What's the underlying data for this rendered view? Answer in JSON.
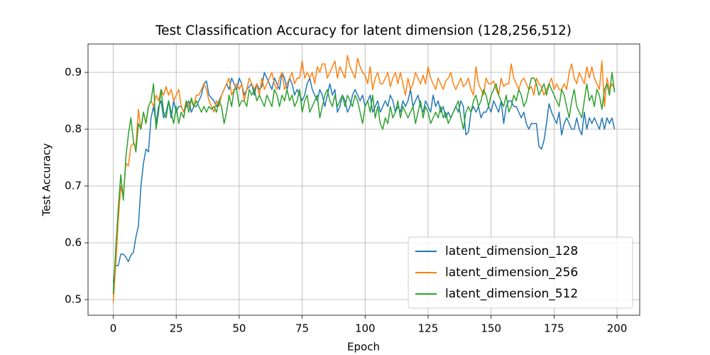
{
  "chart_data": {
    "type": "line",
    "title": "Test Classification Accuracy for latent dimension (128,256,512)",
    "xlabel": "Epoch",
    "ylabel": "Test Accuracy",
    "x": [
      0,
      1,
      2,
      3,
      4,
      5,
      6,
      7,
      8,
      9,
      10,
      11,
      12,
      13,
      14,
      15,
      16,
      17,
      18,
      19,
      20,
      21,
      22,
      23,
      24,
      25,
      26,
      27,
      28,
      29,
      30,
      31,
      32,
      33,
      34,
      35,
      36,
      37,
      38,
      39,
      40,
      41,
      42,
      43,
      44,
      45,
      46,
      47,
      48,
      49,
      50,
      51,
      52,
      53,
      54,
      55,
      56,
      57,
      58,
      59,
      60,
      61,
      62,
      63,
      64,
      65,
      66,
      67,
      68,
      69,
      70,
      71,
      72,
      73,
      74,
      75,
      76,
      77,
      78,
      79,
      80,
      81,
      82,
      83,
      84,
      85,
      86,
      87,
      88,
      89,
      90,
      91,
      92,
      93,
      94,
      95,
      96,
      97,
      98,
      99,
      100,
      101,
      102,
      103,
      104,
      105,
      106,
      107,
      108,
      109,
      110,
      111,
      112,
      113,
      114,
      115,
      116,
      117,
      118,
      119,
      120,
      121,
      122,
      123,
      124,
      125,
      126,
      127,
      128,
      129,
      130,
      131,
      132,
      133,
      134,
      135,
      136,
      137,
      138,
      139,
      140,
      141,
      142,
      143,
      144,
      145,
      146,
      147,
      148,
      149,
      150,
      151,
      152,
      153,
      154,
      155,
      156,
      157,
      158,
      159,
      160,
      161,
      162,
      163,
      164,
      165,
      166,
      167,
      168,
      169,
      170,
      171,
      172,
      173,
      174,
      175,
      176,
      177,
      178,
      179,
      180,
      181,
      182,
      183,
      184,
      185,
      186,
      187,
      188,
      189,
      190,
      191,
      192,
      193,
      194,
      195,
      196,
      197,
      198,
      199
    ],
    "series": [
      {
        "name": "latent_dimension_128",
        "color": "#1f77b4",
        "values": [
          0.53,
          0.56,
          0.56,
          0.58,
          0.58,
          0.575,
          0.567,
          0.578,
          0.583,
          0.61,
          0.63,
          0.7,
          0.74,
          0.765,
          0.76,
          0.82,
          0.84,
          0.81,
          0.84,
          0.85,
          0.82,
          0.83,
          0.85,
          0.82,
          0.85,
          0.83,
          0.84,
          0.84,
          0.83,
          0.84,
          0.85,
          0.83,
          0.84,
          0.84,
          0.85,
          0.86,
          0.88,
          0.885,
          0.86,
          0.855,
          0.85,
          0.84,
          0.85,
          0.86,
          0.87,
          0.88,
          0.87,
          0.89,
          0.88,
          0.87,
          0.89,
          0.88,
          0.86,
          0.87,
          0.875,
          0.88,
          0.86,
          0.88,
          0.87,
          0.875,
          0.9,
          0.89,
          0.88,
          0.87,
          0.89,
          0.88,
          0.87,
          0.9,
          0.89,
          0.87,
          0.89,
          0.88,
          0.86,
          0.87,
          0.86,
          0.85,
          0.86,
          0.88,
          0.89,
          0.87,
          0.86,
          0.85,
          0.87,
          0.86,
          0.84,
          0.86,
          0.88,
          0.86,
          0.87,
          0.83,
          0.84,
          0.86,
          0.85,
          0.83,
          0.84,
          0.86,
          0.87,
          0.86,
          0.85,
          0.86,
          0.84,
          0.85,
          0.86,
          0.83,
          0.84,
          0.85,
          0.83,
          0.84,
          0.85,
          0.84,
          0.86,
          0.85,
          0.83,
          0.84,
          0.83,
          0.85,
          0.84,
          0.85,
          0.87,
          0.84,
          0.85,
          0.86,
          0.84,
          0.83,
          0.85,
          0.84,
          0.83,
          0.86,
          0.84,
          0.85,
          0.83,
          0.84,
          0.82,
          0.83,
          0.82,
          0.83,
          0.84,
          0.83,
          0.85,
          0.84,
          0.79,
          0.795,
          0.83,
          0.84,
          0.83,
          0.84,
          0.82,
          0.83,
          0.83,
          0.84,
          0.83,
          0.85,
          0.84,
          0.83,
          0.85,
          0.81,
          0.84,
          0.85,
          0.85,
          0.84,
          0.84,
          0.83,
          0.82,
          0.83,
          0.81,
          0.8,
          0.81,
          0.81,
          0.81,
          0.77,
          0.765,
          0.78,
          0.81,
          0.845,
          0.83,
          0.82,
          0.81,
          0.83,
          0.79,
          0.81,
          0.82,
          0.81,
          0.8,
          0.8,
          0.82,
          0.8,
          0.79,
          0.83,
          0.8,
          0.82,
          0.81,
          0.82,
          0.81,
          0.8,
          0.82,
          0.8,
          0.82,
          0.81,
          0.82,
          0.8
        ]
      },
      {
        "name": "latent_dimension_256",
        "color": "#ff7f0e",
        "values": [
          0.495,
          0.56,
          0.64,
          0.7,
          0.68,
          0.74,
          0.735,
          0.77,
          0.775,
          0.77,
          0.835,
          0.8,
          0.83,
          0.81,
          0.84,
          0.85,
          0.84,
          0.86,
          0.85,
          0.87,
          0.86,
          0.875,
          0.86,
          0.87,
          0.85,
          0.86,
          0.87,
          0.84,
          0.83,
          0.85,
          0.84,
          0.85,
          0.84,
          0.86,
          0.86,
          0.87,
          0.88,
          0.87,
          0.85,
          0.84,
          0.83,
          0.85,
          0.84,
          0.86,
          0.87,
          0.88,
          0.89,
          0.86,
          0.87,
          0.88,
          0.87,
          0.88,
          0.85,
          0.87,
          0.89,
          0.88,
          0.87,
          0.88,
          0.86,
          0.89,
          0.87,
          0.88,
          0.89,
          0.9,
          0.88,
          0.87,
          0.89,
          0.9,
          0.87,
          0.88,
          0.89,
          0.9,
          0.88,
          0.89,
          0.89,
          0.92,
          0.89,
          0.9,
          0.89,
          0.9,
          0.88,
          0.91,
          0.9,
          0.915,
          0.915,
          0.89,
          0.9,
          0.91,
          0.92,
          0.89,
          0.91,
          0.9,
          0.89,
          0.93,
          0.91,
          0.9,
          0.89,
          0.925,
          0.91,
          0.9,
          0.895,
          0.88,
          0.91,
          0.87,
          0.89,
          0.9,
          0.88,
          0.88,
          0.89,
          0.9,
          0.875,
          0.89,
          0.9,
          0.88,
          0.9,
          0.88,
          0.86,
          0.89,
          0.87,
          0.88,
          0.9,
          0.89,
          0.88,
          0.895,
          0.88,
          0.91,
          0.89,
          0.88,
          0.87,
          0.89,
          0.88,
          0.87,
          0.885,
          0.89,
          0.9,
          0.88,
          0.87,
          0.88,
          0.89,
          0.875,
          0.88,
          0.89,
          0.87,
          0.86,
          0.91,
          0.88,
          0.87,
          0.86,
          0.89,
          0.88,
          0.88,
          0.885,
          0.87,
          0.86,
          0.89,
          0.875,
          0.88,
          0.88,
          0.915,
          0.89,
          0.88,
          0.87,
          0.885,
          0.89,
          0.88,
          0.87,
          0.875,
          0.86,
          0.89,
          0.88,
          0.875,
          0.86,
          0.87,
          0.88,
          0.89,
          0.87,
          0.88,
          0.87,
          0.87,
          0.88,
          0.87,
          0.9,
          0.915,
          0.89,
          0.88,
          0.9,
          0.89,
          0.88,
          0.91,
          0.89,
          0.91,
          0.89,
          0.88,
          0.87,
          0.92,
          0.84,
          0.89,
          0.87,
          0.88,
          0.87
        ]
      },
      {
        "name": "latent_dimension_512",
        "color": "#2ca02c",
        "values": [
          0.51,
          0.59,
          0.66,
          0.72,
          0.675,
          0.75,
          0.79,
          0.82,
          0.78,
          0.76,
          0.81,
          0.8,
          0.83,
          0.81,
          0.84,
          0.85,
          0.88,
          0.8,
          0.83,
          0.87,
          0.83,
          0.82,
          0.85,
          0.83,
          0.81,
          0.84,
          0.81,
          0.83,
          0.82,
          0.85,
          0.83,
          0.855,
          0.84,
          0.85,
          0.84,
          0.83,
          0.84,
          0.83,
          0.84,
          0.835,
          0.84,
          0.83,
          0.85,
          0.84,
          0.81,
          0.83,
          0.86,
          0.84,
          0.87,
          0.87,
          0.84,
          0.85,
          0.85,
          0.84,
          0.87,
          0.86,
          0.87,
          0.85,
          0.86,
          0.85,
          0.84,
          0.86,
          0.85,
          0.84,
          0.87,
          0.86,
          0.84,
          0.86,
          0.85,
          0.87,
          0.85,
          0.86,
          0.84,
          0.85,
          0.87,
          0.83,
          0.85,
          0.86,
          0.83,
          0.84,
          0.85,
          0.86,
          0.82,
          0.84,
          0.86,
          0.87,
          0.85,
          0.84,
          0.86,
          0.84,
          0.85,
          0.86,
          0.84,
          0.86,
          0.85,
          0.84,
          0.86,
          0.85,
          0.83,
          0.81,
          0.84,
          0.85,
          0.83,
          0.86,
          0.82,
          0.84,
          0.81,
          0.8,
          0.82,
          0.81,
          0.84,
          0.82,
          0.83,
          0.85,
          0.82,
          0.84,
          0.83,
          0.82,
          0.83,
          0.84,
          0.81,
          0.83,
          0.85,
          0.82,
          0.84,
          0.83,
          0.81,
          0.82,
          0.83,
          0.82,
          0.84,
          0.82,
          0.83,
          0.81,
          0.82,
          0.83,
          0.84,
          0.85,
          0.82,
          0.8,
          0.83,
          0.84,
          0.83,
          0.85,
          0.86,
          0.84,
          0.85,
          0.87,
          0.86,
          0.84,
          0.86,
          0.87,
          0.88,
          0.86,
          0.85,
          0.84,
          0.86,
          0.83,
          0.84,
          0.86,
          0.85,
          0.87,
          0.86,
          0.84,
          0.85,
          0.87,
          0.89,
          0.89,
          0.88,
          0.86,
          0.87,
          0.88,
          0.86,
          0.88,
          0.87,
          0.86,
          0.85,
          0.84,
          0.87,
          0.86,
          0.84,
          0.82,
          0.85,
          0.87,
          0.84,
          0.83,
          0.82,
          0.85,
          0.88,
          0.85,
          0.86,
          0.84,
          0.87,
          0.86,
          0.835,
          0.87,
          0.88,
          0.86,
          0.9,
          0.865
        ]
      }
    ],
    "xlim": [
      -10,
      209
    ],
    "ylim": [
      0.4725,
      0.95
    ],
    "xticks": [
      0,
      25,
      50,
      75,
      100,
      125,
      150,
      175,
      200
    ],
    "yticks": [
      0.5,
      0.6,
      0.7,
      0.8,
      0.9
    ],
    "grid": true,
    "legend": "lower right"
  }
}
